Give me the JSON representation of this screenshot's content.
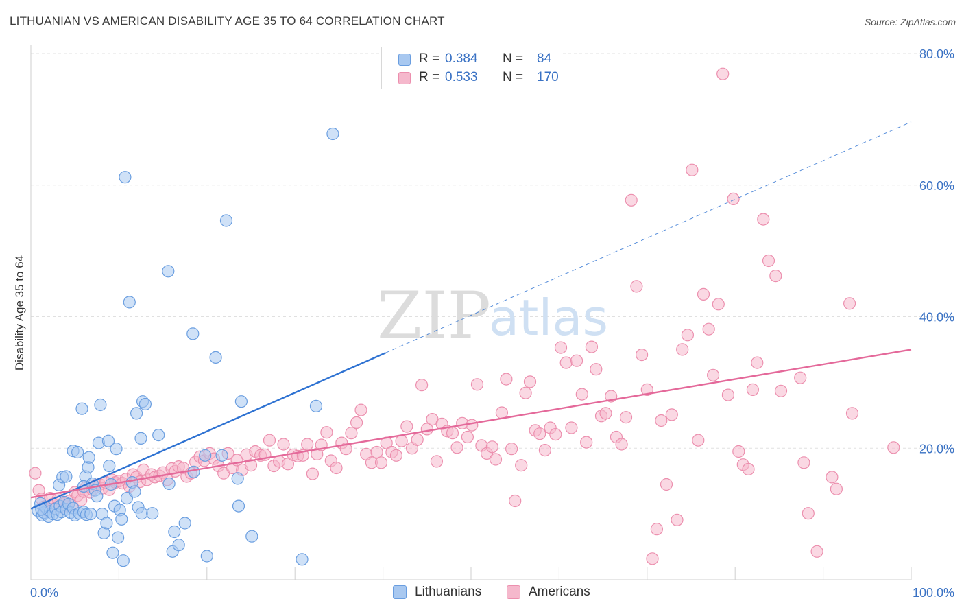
{
  "header": {
    "title": "LITHUANIAN VS AMERICAN DISABILITY AGE 35 TO 64 CORRELATION CHART",
    "source": "Source: ZipAtlas.com"
  },
  "watermark": {
    "zip": "ZIP",
    "atlas": "atlas"
  },
  "legend_top": [
    {
      "r_label": "R =",
      "r_value": "0.384",
      "n_label": "N =",
      "n_value": "84",
      "color": "#a8c8f0"
    },
    {
      "r_label": "R =",
      "r_value": "0.533",
      "n_label": "N =",
      "n_value": "170",
      "color": "#f5b8cc"
    }
  ],
  "legend_bottom": [
    {
      "label": "Lithuanians",
      "color": "#a8c8f0"
    },
    {
      "label": "Americans",
      "color": "#f5b8cc"
    }
  ],
  "colors": {
    "blue_fill": "#a8c8f0",
    "blue_stroke": "#6a9ee0",
    "blue_line": "#2e72d2",
    "pink_fill": "#f5b8cc",
    "pink_stroke": "#ec8fae",
    "pink_line": "#e4699a",
    "tick_label": "#3a72c4",
    "grid": "#e0e0e0"
  },
  "chart_data": {
    "type": "scatter",
    "title": "LITHUANIAN VS AMERICAN DISABILITY AGE 35 TO 64 CORRELATION CHART",
    "xlabel": "",
    "ylabel": "Disability Age 35 to 64",
    "xlim": [
      0,
      100
    ],
    "ylim": [
      0,
      80
    ],
    "x_tick_labels": [
      "0.0%",
      "100.0%"
    ],
    "y_ticks": [
      20,
      40,
      60,
      80
    ],
    "y_tick_labels": [
      "20.0%",
      "40.0%",
      "60.0%",
      "80.0%"
    ],
    "grid": true,
    "legend_position": "top-center",
    "series": [
      {
        "name": "Lithuanians",
        "R": 0.384,
        "N": 84,
        "trend": {
          "x": [
            0,
            40.3
          ],
          "y": [
            10.8,
            34.5
          ]
        },
        "trend_dashed": {
          "x": [
            40.3,
            100
          ],
          "y": [
            34.5,
            69.6
          ]
        },
        "points": [
          [
            0.8,
            10.5
          ],
          [
            1.1,
            11.6
          ],
          [
            1.3,
            9.8
          ],
          [
            1.5,
            10.2
          ],
          [
            1.7,
            11.0
          ],
          [
            2.0,
            9.6
          ],
          [
            2.2,
            10.4
          ],
          [
            2.5,
            10.0
          ],
          [
            2.8,
            10.8
          ],
          [
            3.0,
            9.9
          ],
          [
            3.3,
            11.2
          ],
          [
            3.5,
            10.3
          ],
          [
            3.8,
            11.8
          ],
          [
            4.0,
            10.7
          ],
          [
            4.3,
            11.5
          ],
          [
            4.5,
            10.2
          ],
          [
            4.8,
            10.9
          ],
          [
            3.2,
            14.4
          ],
          [
            3.6,
            15.6
          ],
          [
            4.0,
            15.7
          ],
          [
            4.8,
            19.6
          ],
          [
            5.3,
            19.4
          ],
          [
            5.0,
            9.8
          ],
          [
            5.5,
            10.1
          ],
          [
            6.0,
            10.3
          ],
          [
            6.3,
            9.9
          ],
          [
            5.8,
            26.0
          ],
          [
            6.2,
            15.7
          ],
          [
            6.5,
            17.1
          ],
          [
            6.6,
            18.6
          ],
          [
            6.0,
            14.2
          ],
          [
            6.8,
            10.0
          ],
          [
            7.0,
            14.6
          ],
          [
            7.3,
            13.6
          ],
          [
            7.5,
            12.7
          ],
          [
            7.7,
            20.8
          ],
          [
            7.9,
            26.6
          ],
          [
            8.1,
            10.0
          ],
          [
            8.3,
            7.1
          ],
          [
            8.6,
            8.6
          ],
          [
            8.8,
            21.1
          ],
          [
            8.9,
            17.3
          ],
          [
            9.1,
            14.5
          ],
          [
            9.3,
            4.1
          ],
          [
            9.5,
            11.2
          ],
          [
            9.7,
            19.9
          ],
          [
            9.9,
            6.4
          ],
          [
            10.1,
            10.6
          ],
          [
            10.3,
            9.2
          ],
          [
            10.5,
            2.9
          ],
          [
            10.7,
            61.2
          ],
          [
            10.9,
            12.4
          ],
          [
            11.2,
            42.2
          ],
          [
            11.5,
            14.8
          ],
          [
            11.8,
            13.4
          ],
          [
            12.0,
            25.3
          ],
          [
            12.2,
            11.0
          ],
          [
            12.5,
            21.5
          ],
          [
            12.7,
            27.1
          ],
          [
            13.0,
            26.7
          ],
          [
            12.6,
            10.1
          ],
          [
            13.8,
            10.1
          ],
          [
            14.5,
            22.0
          ],
          [
            15.6,
            46.9
          ],
          [
            15.7,
            14.6
          ],
          [
            16.1,
            4.3
          ],
          [
            16.3,
            7.3
          ],
          [
            16.8,
            5.3
          ],
          [
            17.5,
            8.6
          ],
          [
            18.4,
            37.4
          ],
          [
            18.5,
            16.4
          ],
          [
            20.0,
            3.6
          ],
          [
            19.8,
            18.9
          ],
          [
            21.0,
            33.8
          ],
          [
            21.7,
            18.9
          ],
          [
            22.2,
            54.6
          ],
          [
            23.5,
            15.4
          ],
          [
            23.9,
            27.1
          ],
          [
            23.6,
            11.2
          ],
          [
            25.1,
            6.6
          ],
          [
            30.8,
            3.1
          ],
          [
            32.4,
            26.4
          ],
          [
            34.3,
            67.8
          ],
          [
            1.2,
            10.7
          ]
        ]
      },
      {
        "name": "Americans",
        "R": 0.533,
        "N": 170,
        "trend": {
          "x": [
            0,
            100
          ],
          "y": [
            12.5,
            35.0
          ]
        },
        "points": [
          [
            0.5,
            16.2
          ],
          [
            0.9,
            13.6
          ],
          [
            1.2,
            12.3
          ],
          [
            1.5,
            11.1
          ],
          [
            1.8,
            10.6
          ],
          [
            2.2,
            12.4
          ],
          [
            2.5,
            11.5
          ],
          [
            2.8,
            10.9
          ],
          [
            3.1,
            12.3
          ],
          [
            3.5,
            11.0
          ],
          [
            3.8,
            11.6
          ],
          [
            4.1,
            11.2
          ],
          [
            4.4,
            12.0
          ],
          [
            4.7,
            11.3
          ],
          [
            5.0,
            13.3
          ],
          [
            5.3,
            12.8
          ],
          [
            5.7,
            12.1
          ],
          [
            6.0,
            13.4
          ],
          [
            6.3,
            14.1
          ],
          [
            6.7,
            13.3
          ],
          [
            7.0,
            13.7
          ],
          [
            7.4,
            14.4
          ],
          [
            7.8,
            14.5
          ],
          [
            8.1,
            13.9
          ],
          [
            8.5,
            14.8
          ],
          [
            8.9,
            13.7
          ],
          [
            9.2,
            15.2
          ],
          [
            9.6,
            14.8
          ],
          [
            10.0,
            15.0
          ],
          [
            10.4,
            14.7
          ],
          [
            10.8,
            15.3
          ],
          [
            11.2,
            14.2
          ],
          [
            11.6,
            16.0
          ],
          [
            12.0,
            15.6
          ],
          [
            12.4,
            14.9
          ],
          [
            12.8,
            16.7
          ],
          [
            13.2,
            15.2
          ],
          [
            13.7,
            16.0
          ],
          [
            14.1,
            15.6
          ],
          [
            14.6,
            15.8
          ],
          [
            15.0,
            16.3
          ],
          [
            15.5,
            15.2
          ],
          [
            16.0,
            16.9
          ],
          [
            16.4,
            16.5
          ],
          [
            16.8,
            17.2
          ],
          [
            17.3,
            17.0
          ],
          [
            17.7,
            15.7
          ],
          [
            18.2,
            16.2
          ],
          [
            18.7,
            17.9
          ],
          [
            19.2,
            18.7
          ],
          [
            19.7,
            18.1
          ],
          [
            20.3,
            19.2
          ],
          [
            20.8,
            18.4
          ],
          [
            21.3,
            17.3
          ],
          [
            21.9,
            16.2
          ],
          [
            22.4,
            19.2
          ],
          [
            22.9,
            17.0
          ],
          [
            23.4,
            18.2
          ],
          [
            24.0,
            16.7
          ],
          [
            24.5,
            19.0
          ],
          [
            25.0,
            17.4
          ],
          [
            25.5,
            19.5
          ],
          [
            26.1,
            18.9
          ],
          [
            26.6,
            19.0
          ],
          [
            27.1,
            21.2
          ],
          [
            27.6,
            17.3
          ],
          [
            28.2,
            18.0
          ],
          [
            28.7,
            20.6
          ],
          [
            29.2,
            17.6
          ],
          [
            29.8,
            19.0
          ],
          [
            30.3,
            18.8
          ],
          [
            30.9,
            18.9
          ],
          [
            31.4,
            20.6
          ],
          [
            32.0,
            16.1
          ],
          [
            32.5,
            19.1
          ],
          [
            33.0,
            20.5
          ],
          [
            33.6,
            22.4
          ],
          [
            34.1,
            18.1
          ],
          [
            34.7,
            17.0
          ],
          [
            35.3,
            20.8
          ],
          [
            35.8,
            19.9
          ],
          [
            36.4,
            22.3
          ],
          [
            37.0,
            23.9
          ],
          [
            37.5,
            25.8
          ],
          [
            38.1,
            19.1
          ],
          [
            38.7,
            17.8
          ],
          [
            39.3,
            19.4
          ],
          [
            39.8,
            17.8
          ],
          [
            40.4,
            20.8
          ],
          [
            41.0,
            19.4
          ],
          [
            41.5,
            18.9
          ],
          [
            42.1,
            21.1
          ],
          [
            42.7,
            23.3
          ],
          [
            43.3,
            20.0
          ],
          [
            43.9,
            21.3
          ],
          [
            44.4,
            29.6
          ],
          [
            45.0,
            22.9
          ],
          [
            45.6,
            24.4
          ],
          [
            46.1,
            18.0
          ],
          [
            46.7,
            23.7
          ],
          [
            47.3,
            22.6
          ],
          [
            47.9,
            22.3
          ],
          [
            48.4,
            20.1
          ],
          [
            49.0,
            23.8
          ],
          [
            49.6,
            21.7
          ],
          [
            50.1,
            23.5
          ],
          [
            50.7,
            29.7
          ],
          [
            51.2,
            20.4
          ],
          [
            51.8,
            19.2
          ],
          [
            52.4,
            20.2
          ],
          [
            52.8,
            18.3
          ],
          [
            53.5,
            25.4
          ],
          [
            54.0,
            30.5
          ],
          [
            54.6,
            19.9
          ],
          [
            55.0,
            12.0
          ],
          [
            55.7,
            17.4
          ],
          [
            56.2,
            28.4
          ],
          [
            56.7,
            30.1
          ],
          [
            57.3,
            22.7
          ],
          [
            57.8,
            22.2
          ],
          [
            58.4,
            19.7
          ],
          [
            59.0,
            23.1
          ],
          [
            59.6,
            22.1
          ],
          [
            60.2,
            35.3
          ],
          [
            60.8,
            33.0
          ],
          [
            61.4,
            23.1
          ],
          [
            62.0,
            33.3
          ],
          [
            62.6,
            28.2
          ],
          [
            63.1,
            20.9
          ],
          [
            63.7,
            35.4
          ],
          [
            64.2,
            32.0
          ],
          [
            64.8,
            24.9
          ],
          [
            65.3,
            25.3
          ],
          [
            65.9,
            27.9
          ],
          [
            66.5,
            21.7
          ],
          [
            67.1,
            20.6
          ],
          [
            67.6,
            24.7
          ],
          [
            68.2,
            57.7
          ],
          [
            68.8,
            44.6
          ],
          [
            69.4,
            34.2
          ],
          [
            70.0,
            28.9
          ],
          [
            70.6,
            3.2
          ],
          [
            71.1,
            7.7
          ],
          [
            71.6,
            24.2
          ],
          [
            72.2,
            14.5
          ],
          [
            72.8,
            25.1
          ],
          [
            73.4,
            9.1
          ],
          [
            74.0,
            35.0
          ],
          [
            74.6,
            37.2
          ],
          [
            75.1,
            62.3
          ],
          [
            75.8,
            21.2
          ],
          [
            76.4,
            43.4
          ],
          [
            77.0,
            38.1
          ],
          [
            77.5,
            31.1
          ],
          [
            78.1,
            41.9
          ],
          [
            78.6,
            76.9
          ],
          [
            79.2,
            28.1
          ],
          [
            79.8,
            57.9
          ],
          [
            80.4,
            19.5
          ],
          [
            80.9,
            17.5
          ],
          [
            81.5,
            16.8
          ],
          [
            82.0,
            28.9
          ],
          [
            82.5,
            33.0
          ],
          [
            83.2,
            54.8
          ],
          [
            83.8,
            48.5
          ],
          [
            84.6,
            46.2
          ],
          [
            85.2,
            28.7
          ],
          [
            87.4,
            30.7
          ],
          [
            87.8,
            17.8
          ],
          [
            88.3,
            10.1
          ],
          [
            89.3,
            4.3
          ],
          [
            91.0,
            15.6
          ],
          [
            91.5,
            13.8
          ],
          [
            93.0,
            42.0
          ],
          [
            93.3,
            25.3
          ],
          [
            98.0,
            20.1
          ]
        ]
      }
    ]
  }
}
